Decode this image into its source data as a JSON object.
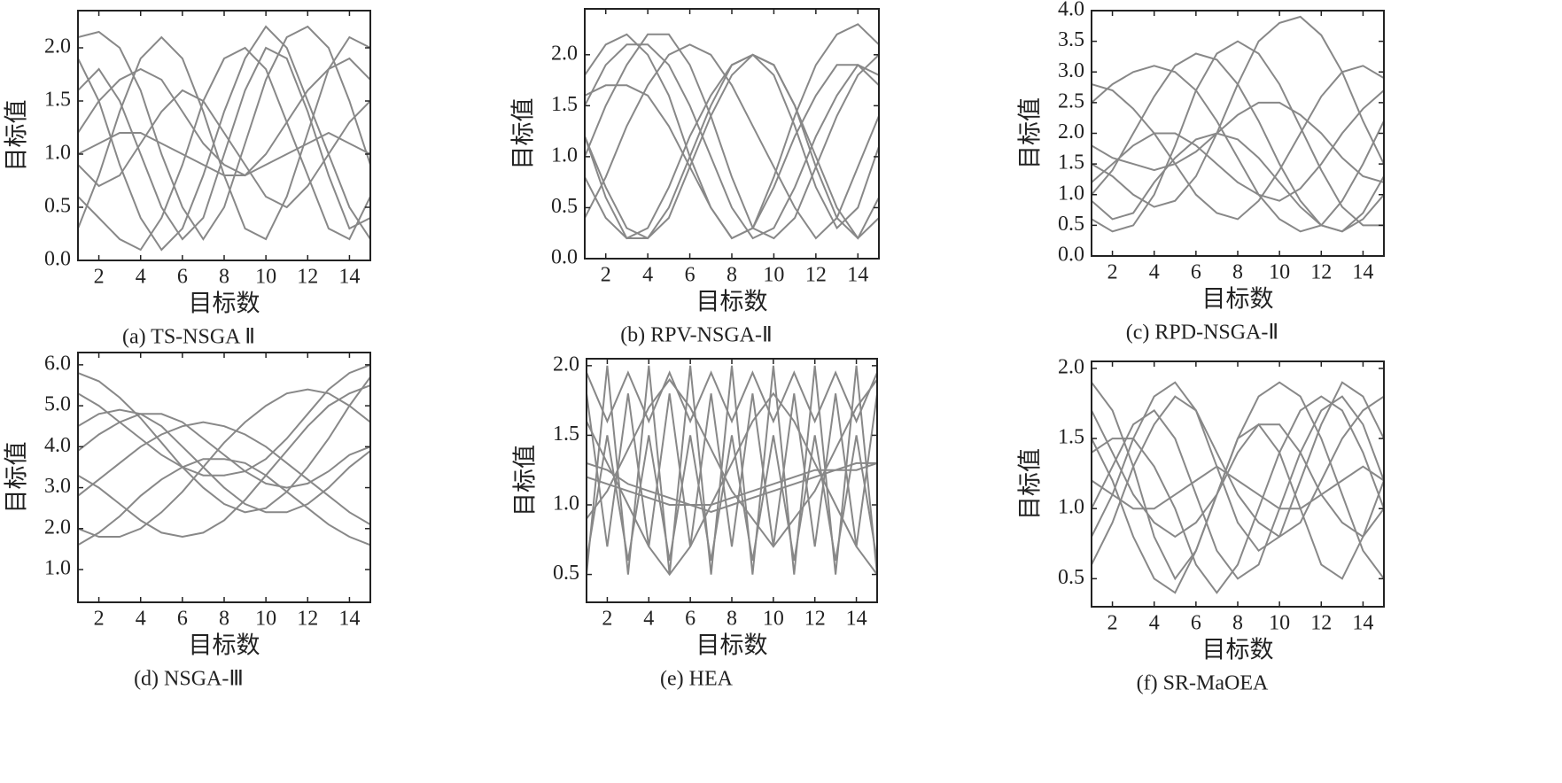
{
  "chart_data": [
    {
      "type": "line",
      "title": "(a) TS-NSGA Ⅱ",
      "xlabel": "目标数",
      "ylabel": "目标值",
      "color": "#888888",
      "x": [
        1,
        2,
        3,
        4,
        5,
        6,
        7,
        8,
        9,
        10,
        11,
        12,
        13,
        14,
        15
      ],
      "xlim": [
        1,
        15
      ],
      "xticks": [
        2,
        4,
        6,
        8,
        10,
        12,
        14
      ],
      "ylim": [
        0,
        2.35
      ],
      "yticks": [
        {
          "value": 0,
          "label": "0.0"
        },
        0.5,
        {
          "value": 1,
          "label": "1.0"
        },
        1.5,
        {
          "value": 2,
          "label": "2.0"
        }
      ],
      "series": [
        {
          "values": [
            2.1,
            2.15,
            2.0,
            1.6,
            1.0,
            0.5,
            0.2,
            0.5,
            1.1,
            1.7,
            2.1,
            2.2,
            2.0,
            1.5,
            0.9
          ]
        },
        {
          "values": [
            0.3,
            0.8,
            1.4,
            1.9,
            2.1,
            1.9,
            1.4,
            0.8,
            0.3,
            0.2,
            0.6,
            1.2,
            1.8,
            2.1,
            2.0
          ]
        },
        {
          "values": [
            1.6,
            1.8,
            1.5,
            1.0,
            0.5,
            0.2,
            0.4,
            1.0,
            1.6,
            2.0,
            1.9,
            1.4,
            0.8,
            0.3,
            0.4
          ]
        },
        {
          "values": [
            1.0,
            1.1,
            1.2,
            1.2,
            1.1,
            1.0,
            0.9,
            0.8,
            0.8,
            0.9,
            1.0,
            1.1,
            1.2,
            1.1,
            1.0
          ]
        },
        {
          "values": [
            0.6,
            0.4,
            0.2,
            0.1,
            0.4,
            0.9,
            1.5,
            1.9,
            2.0,
            1.8,
            1.3,
            0.8,
            0.3,
            0.2,
            0.6
          ]
        },
        {
          "values": [
            1.9,
            1.5,
            0.9,
            0.4,
            0.1,
            0.3,
            0.8,
            1.4,
            1.9,
            2.2,
            2.0,
            1.5,
            1.0,
            0.5,
            0.2
          ]
        },
        {
          "values": [
            1.2,
            1.5,
            1.7,
            1.8,
            1.7,
            1.4,
            1.1,
            0.9,
            0.8,
            1.0,
            1.3,
            1.6,
            1.8,
            1.9,
            1.7
          ]
        },
        {
          "values": [
            0.9,
            0.7,
            0.8,
            1.1,
            1.4,
            1.6,
            1.5,
            1.2,
            0.9,
            0.6,
            0.5,
            0.7,
            1.0,
            1.3,
            1.5
          ]
        }
      ]
    },
    {
      "type": "line",
      "title": "(b) RPV-NSGA-Ⅱ",
      "xlabel": "目标数",
      "ylabel": "目标值",
      "color": "#888888",
      "x": [
        1,
        2,
        3,
        4,
        5,
        6,
        7,
        8,
        9,
        10,
        11,
        12,
        13,
        14,
        15
      ],
      "xlim": [
        1,
        15
      ],
      "xticks": [
        2,
        4,
        6,
        8,
        10,
        12,
        14
      ],
      "ylim": [
        0,
        2.45
      ],
      "yticks": [
        {
          "value": 0,
          "label": "0.0"
        },
        0.5,
        {
          "value": 1,
          "label": "1.0"
        },
        1.5,
        {
          "value": 2,
          "label": "2.0"
        }
      ],
      "series": [
        {
          "values": [
            1.2,
            0.6,
            0.2,
            0.2,
            0.5,
            1.0,
            1.5,
            1.9,
            2.0,
            1.8,
            1.3,
            0.7,
            0.3,
            0.5,
            1.1
          ]
        },
        {
          "values": [
            1.5,
            1.9,
            2.1,
            2.1,
            1.9,
            1.5,
            1.0,
            0.5,
            0.2,
            0.3,
            0.7,
            1.2,
            1.6,
            1.9,
            1.8
          ]
        },
        {
          "values": [
            0.8,
            0.4,
            0.2,
            0.3,
            0.7,
            1.2,
            1.6,
            1.9,
            2.0,
            1.9,
            1.5,
            0.9,
            0.4,
            0.2,
            0.6
          ]
        },
        {
          "values": [
            1.6,
            1.7,
            1.7,
            1.6,
            1.3,
            0.9,
            0.5,
            0.2,
            0.3,
            0.7,
            1.2,
            1.6,
            1.9,
            1.9,
            1.7
          ]
        },
        {
          "values": [
            1.0,
            1.5,
            1.9,
            2.2,
            2.2,
            1.9,
            1.4,
            0.8,
            0.3,
            0.2,
            0.4,
            0.9,
            1.4,
            1.8,
            2.0
          ]
        },
        {
          "values": [
            1.2,
            0.7,
            0.3,
            0.2,
            0.4,
            0.9,
            1.4,
            1.8,
            2.0,
            1.9,
            1.5,
            1.0,
            0.5,
            0.2,
            0.4
          ]
        },
        {
          "values": [
            1.8,
            2.1,
            2.2,
            2.0,
            1.6,
            1.0,
            0.5,
            0.2,
            0.3,
            0.8,
            1.4,
            1.9,
            2.2,
            2.3,
            2.1
          ]
        },
        {
          "values": [
            0.4,
            0.8,
            1.3,
            1.7,
            2.0,
            2.1,
            2.0,
            1.7,
            1.3,
            0.9,
            0.5,
            0.2,
            0.4,
            0.9,
            1.4
          ]
        }
      ]
    },
    {
      "type": "line",
      "title": "(c) RPD-NSGA-Ⅱ",
      "xlabel": "目标数",
      "ylabel": "目标值",
      "color": "#888888",
      "x": [
        1,
        2,
        3,
        4,
        5,
        6,
        7,
        8,
        9,
        10,
        11,
        12,
        13,
        14,
        15
      ],
      "xlim": [
        1,
        15
      ],
      "xticks": [
        2,
        4,
        6,
        8,
        10,
        12,
        14
      ],
      "ylim": [
        0,
        4
      ],
      "yticks": [
        {
          "value": 0,
          "label": "0.0"
        },
        0.5,
        {
          "value": 1,
          "label": "1.0"
        },
        1.5,
        {
          "value": 2,
          "label": "2.0"
        },
        2.5,
        {
          "value": 3,
          "label": "3.0"
        },
        3.5,
        {
          "value": 4,
          "label": "4.0"
        }
      ],
      "series": [
        {
          "values": [
            2.8,
            2.7,
            2.4,
            2.0,
            1.5,
            1.0,
            0.7,
            0.6,
            0.9,
            1.4,
            2.0,
            2.6,
            3.0,
            3.1,
            2.9
          ]
        },
        {
          "values": [
            0.6,
            0.4,
            0.5,
            1.0,
            1.8,
            2.7,
            3.3,
            3.5,
            3.3,
            2.8,
            2.1,
            1.4,
            0.8,
            0.5,
            0.5
          ]
        },
        {
          "values": [
            1.2,
            1.5,
            1.8,
            2.0,
            2.0,
            1.8,
            1.5,
            1.2,
            1.0,
            0.9,
            1.1,
            1.5,
            2.0,
            2.4,
            2.7
          ]
        },
        {
          "values": [
            1.5,
            1.3,
            1.0,
            0.8,
            0.9,
            1.3,
            2.0,
            2.8,
            3.5,
            3.8,
            3.9,
            3.6,
            3.0,
            2.2,
            1.5
          ]
        },
        {
          "values": [
            2.5,
            2.8,
            3.0,
            3.1,
            3.0,
            2.7,
            2.2,
            1.6,
            1.0,
            0.6,
            0.4,
            0.5,
            0.9,
            1.5,
            2.2
          ]
        },
        {
          "values": [
            0.9,
            0.6,
            0.7,
            1.2,
            1.6,
            1.9,
            2.0,
            1.9,
            1.6,
            1.2,
            0.8,
            0.5,
            0.4,
            0.6,
            1.0
          ]
        },
        {
          "values": [
            1.8,
            1.6,
            1.5,
            1.4,
            1.5,
            1.7,
            2.0,
            2.3,
            2.5,
            2.5,
            2.3,
            2.0,
            1.6,
            1.3,
            1.2
          ]
        },
        {
          "values": [
            1.0,
            1.4,
            2.0,
            2.6,
            3.1,
            3.3,
            3.2,
            2.8,
            2.2,
            1.5,
            0.9,
            0.5,
            0.4,
            0.7,
            1.3
          ]
        }
      ]
    },
    {
      "type": "line",
      "title": "(d) NSGA-Ⅲ",
      "xlabel": "目标数",
      "ylabel": "目标值",
      "color": "#888888",
      "x": [
        1,
        2,
        3,
        4,
        5,
        6,
        7,
        8,
        9,
        10,
        11,
        12,
        13,
        14,
        15
      ],
      "xlim": [
        1,
        15
      ],
      "xticks": [
        2,
        4,
        6,
        8,
        10,
        12,
        14
      ],
      "ylim": [
        0.2,
        6.3
      ],
      "yticks": [
        {
          "value": 1,
          "label": "1.0"
        },
        {
          "value": 2,
          "label": "2.0"
        },
        {
          "value": 3,
          "label": "3.0"
        },
        {
          "value": 4,
          "label": "4.0"
        },
        {
          "value": 5,
          "label": "5.0"
        },
        {
          "value": 6,
          "label": "6.0"
        }
      ],
      "series": [
        {
          "values": [
            5.8,
            5.6,
            5.2,
            4.7,
            4.1,
            3.5,
            3.0,
            2.6,
            2.4,
            2.5,
            2.9,
            3.5,
            4.2,
            5.0,
            5.7
          ]
        },
        {
          "values": [
            3.9,
            4.3,
            4.6,
            4.8,
            4.8,
            4.6,
            4.2,
            3.8,
            3.4,
            3.1,
            3.0,
            3.1,
            3.4,
            3.8,
            4.0
          ]
        },
        {
          "values": [
            2.0,
            1.8,
            1.8,
            2.0,
            2.4,
            2.9,
            3.5,
            4.1,
            4.6,
            5.0,
            5.3,
            5.4,
            5.3,
            5.0,
            4.6
          ]
        },
        {
          "values": [
            3.3,
            3.0,
            2.6,
            2.2,
            1.9,
            1.8,
            1.9,
            2.2,
            2.7,
            3.3,
            3.9,
            4.5,
            5.0,
            5.3,
            5.5
          ]
        },
        {
          "values": [
            4.5,
            4.8,
            4.9,
            4.8,
            4.5,
            4.0,
            3.5,
            3.0,
            2.6,
            2.4,
            2.4,
            2.6,
            3.0,
            3.5,
            3.9
          ]
        },
        {
          "values": [
            2.8,
            3.2,
            3.6,
            4.0,
            4.3,
            4.5,
            4.6,
            4.5,
            4.3,
            4.0,
            3.6,
            3.2,
            2.8,
            2.4,
            2.1
          ]
        },
        {
          "values": [
            5.3,
            5.0,
            4.6,
            4.2,
            3.8,
            3.5,
            3.3,
            3.3,
            3.4,
            3.7,
            4.2,
            4.8,
            5.4,
            5.8,
            6.0
          ]
        },
        {
          "values": [
            1.6,
            1.9,
            2.3,
            2.8,
            3.2,
            3.5,
            3.7,
            3.7,
            3.6,
            3.3,
            2.9,
            2.5,
            2.1,
            1.8,
            1.6
          ]
        }
      ]
    },
    {
      "type": "line",
      "title": "(e) HEA",
      "xlabel": "目标数",
      "ylabel": "目标值",
      "color": "#888888",
      "x": [
        1,
        2,
        3,
        4,
        5,
        6,
        7,
        8,
        9,
        10,
        11,
        12,
        13,
        14,
        15
      ],
      "xlim": [
        1,
        15
      ],
      "xticks": [
        2,
        4,
        6,
        8,
        10,
        12,
        14
      ],
      "ylim": [
        0.3,
        2.05
      ],
      "yticks": [
        0.5,
        {
          "value": 1,
          "label": "1.0"
        },
        1.5,
        {
          "value": 2,
          "label": "2.0"
        }
      ],
      "series": [
        {
          "values": [
            1.2,
            1.15,
            1.1,
            1.05,
            1.0,
            1.0,
            1.0,
            1.05,
            1.1,
            1.15,
            1.2,
            1.25,
            1.25,
            1.3,
            1.3
          ]
        },
        {
          "values": [
            0.5,
            2.0,
            0.5,
            2.0,
            0.5,
            2.0,
            0.5,
            2.0,
            0.5,
            2.0,
            0.5,
            2.0,
            0.5,
            2.0,
            0.5
          ]
        },
        {
          "values": [
            1.8,
            0.7,
            1.8,
            0.7,
            1.8,
            0.7,
            1.8,
            0.7,
            1.8,
            0.7,
            1.8,
            0.7,
            1.8,
            0.7,
            1.8
          ]
        },
        {
          "values": [
            0.9,
            1.1,
            1.4,
            1.7,
            1.9,
            1.7,
            1.4,
            1.1,
            0.9,
            0.7,
            0.9,
            1.1,
            1.4,
            1.7,
            1.9
          ]
        },
        {
          "values": [
            1.6,
            1.3,
            1.0,
            0.7,
            0.5,
            0.7,
            1.0,
            1.3,
            1.6,
            1.8,
            1.6,
            1.3,
            1.0,
            0.7,
            0.5
          ]
        },
        {
          "values": [
            1.3,
            1.25,
            1.15,
            1.1,
            1.05,
            1.0,
            0.95,
            1.0,
            1.05,
            1.1,
            1.15,
            1.2,
            1.25,
            1.25,
            1.3
          ]
        },
        {
          "values": [
            0.6,
            1.5,
            0.6,
            1.5,
            0.6,
            1.5,
            0.6,
            1.5,
            0.6,
            1.5,
            0.6,
            1.5,
            0.6,
            1.5,
            0.6
          ]
        },
        {
          "values": [
            1.95,
            1.6,
            1.95,
            1.6,
            1.95,
            1.6,
            1.95,
            1.6,
            1.95,
            1.6,
            1.95,
            1.6,
            1.95,
            1.6,
            1.95
          ]
        }
      ]
    },
    {
      "type": "line",
      "title": "(f) SR-MaOEA",
      "xlabel": "目标数",
      "ylabel": "目标值",
      "color": "#888888",
      "x": [
        1,
        2,
        3,
        4,
        5,
        6,
        7,
        8,
        9,
        10,
        11,
        12,
        13,
        14,
        15
      ],
      "xlim": [
        1,
        15
      ],
      "xticks": [
        2,
        4,
        6,
        8,
        10,
        12,
        14
      ],
      "ylim": [
        0.3,
        2.05
      ],
      "yticks": [
        0.5,
        {
          "value": 1,
          "label": "1.0"
        },
        1.5,
        {
          "value": 2,
          "label": "2.0"
        }
      ],
      "series": [
        {
          "values": [
            1.9,
            1.7,
            1.3,
            0.8,
            0.5,
            0.7,
            1.1,
            1.5,
            1.8,
            1.9,
            1.8,
            1.5,
            1.1,
            0.7,
            0.5
          ]
        },
        {
          "values": [
            1.0,
            1.3,
            1.6,
            1.7,
            1.5,
            1.1,
            0.7,
            0.5,
            0.6,
            1.0,
            1.4,
            1.7,
            1.8,
            1.6,
            1.2
          ]
        },
        {
          "values": [
            1.4,
            1.5,
            1.5,
            1.3,
            1.0,
            0.6,
            0.4,
            0.6,
            1.0,
            1.4,
            1.7,
            1.8,
            1.7,
            1.4,
            1.0
          ]
        },
        {
          "values": [
            0.6,
            0.9,
            1.3,
            1.6,
            1.8,
            1.7,
            1.4,
            1.1,
            0.9,
            0.8,
            0.9,
            1.2,
            1.5,
            1.7,
            1.8
          ]
        },
        {
          "values": [
            1.2,
            1.1,
            1.0,
            1.0,
            1.1,
            1.2,
            1.3,
            1.2,
            1.1,
            1.0,
            1.0,
            1.1,
            1.2,
            1.3,
            1.2
          ]
        },
        {
          "values": [
            1.5,
            1.2,
            0.8,
            0.5,
            0.4,
            0.7,
            1.1,
            1.5,
            1.6,
            1.4,
            1.0,
            0.6,
            0.5,
            0.8,
            1.2
          ]
        },
        {
          "values": [
            0.8,
            1.1,
            1.5,
            1.8,
            1.9,
            1.7,
            1.3,
            0.9,
            0.7,
            0.8,
            1.2,
            1.6,
            1.9,
            1.8,
            1.5
          ]
        },
        {
          "values": [
            1.7,
            1.4,
            1.1,
            0.9,
            0.8,
            0.9,
            1.1,
            1.4,
            1.6,
            1.6,
            1.4,
            1.1,
            0.9,
            0.8,
            1.0
          ]
        }
      ]
    }
  ]
}
